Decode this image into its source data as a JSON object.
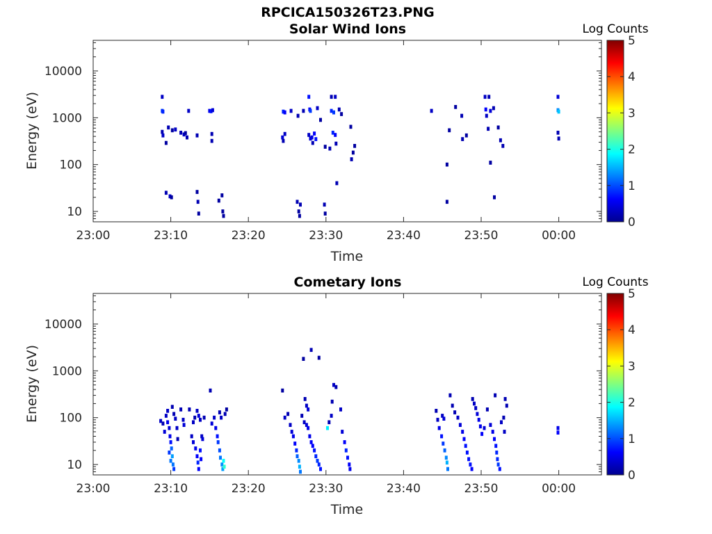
{
  "figure": {
    "title": "RPCICA150326T23.PNG"
  },
  "colors": {
    "colormap": [
      "#00008f",
      "#0000ff",
      "#0080ff",
      "#00ffff",
      "#80ff80",
      "#ffff00",
      "#ff8000",
      "#ff0000",
      "#800000"
    ],
    "axis": "#262626"
  },
  "chart_data": [
    {
      "type": "heatmap",
      "title": "Solar Wind Ions",
      "xlabel": "Time",
      "ylabel": "Energy (eV)",
      "colorbar_label": "Log Counts",
      "x_axis": {
        "type": "time",
        "range_minutes": [
          0,
          65.5
        ],
        "ticks_minutes": [
          0,
          10,
          20,
          30,
          40,
          50,
          60
        ],
        "tick_labels": [
          "23:00",
          "23:10",
          "23:20",
          "23:30",
          "23:40",
          "23:50",
          "00:00"
        ]
      },
      "y_axis": {
        "scale": "log",
        "range_eV": [
          6,
          45000
        ],
        "ticks": [
          10,
          100,
          1000,
          10000
        ],
        "tick_labels": [
          "10",
          "100",
          "1000",
          "10000"
        ]
      },
      "colorbar": {
        "range": [
          0,
          5
        ],
        "ticks": [
          0,
          1,
          2,
          3,
          4,
          5
        ],
        "tick_labels": [
          "0",
          "1",
          "2",
          "3",
          "4",
          "5"
        ]
      },
      "cells": [
        [
          8.9,
          2800,
          0.3
        ],
        [
          8.9,
          1400,
          0.9
        ],
        [
          9.0,
          1350,
          0.8
        ],
        [
          8.9,
          500,
          0.2
        ],
        [
          9.0,
          420,
          0.3
        ],
        [
          9.4,
          290,
          0.1
        ],
        [
          9.7,
          620,
          0.2
        ],
        [
          10.2,
          540,
          0.1
        ],
        [
          10.6,
          560,
          0.3
        ],
        [
          11.3,
          480,
          0.2
        ],
        [
          11.7,
          440,
          0.3
        ],
        [
          11.9,
          470,
          0.1
        ],
        [
          12.1,
          380,
          0.2
        ],
        [
          12.3,
          1400,
          0.3
        ],
        [
          13.4,
          420,
          0.2
        ],
        [
          15.0,
          1400,
          0.5
        ],
        [
          15.2,
          1380,
          0.7
        ],
        [
          15.4,
          1450,
          0.4
        ],
        [
          15.3,
          450,
          0.2
        ],
        [
          15.3,
          320,
          0.2
        ],
        [
          24.5,
          1350,
          0.8
        ],
        [
          24.7,
          1300,
          0.6
        ],
        [
          24.4,
          380,
          0.4
        ],
        [
          24.7,
          450,
          0.3
        ],
        [
          24.5,
          320,
          0.2
        ],
        [
          25.5,
          1400,
          0.3
        ],
        [
          26.4,
          1100,
          0.2
        ],
        [
          27.1,
          1400,
          0.2
        ],
        [
          27.8,
          2800,
          0.7
        ],
        [
          27.9,
          1500,
          0.6
        ],
        [
          28.0,
          1400,
          0.9
        ],
        [
          28.2,
          380,
          0.5
        ],
        [
          28.5,
          460,
          0.6
        ],
        [
          28.7,
          350,
          0.7
        ],
        [
          27.8,
          430,
          0.3
        ],
        [
          28.0,
          360,
          0.4
        ],
        [
          28.3,
          290,
          0.2
        ],
        [
          28.9,
          1600,
          0.3
        ],
        [
          29.3,
          900,
          0.1
        ],
        [
          29.9,
          240,
          0.1
        ],
        [
          30.5,
          220,
          0.2
        ],
        [
          30.7,
          1400,
          0.8
        ],
        [
          31.0,
          1300,
          0.9
        ],
        [
          30.9,
          480,
          0.8
        ],
        [
          31.2,
          430,
          0.6
        ],
        [
          30.7,
          2800,
          0.2
        ],
        [
          31.2,
          2800,
          0.3
        ],
        [
          31.7,
          1500,
          0.2
        ],
        [
          31.3,
          280,
          0.2
        ],
        [
          32.0,
          1200,
          0.1
        ],
        [
          33.2,
          640,
          0.1
        ],
        [
          33.5,
          180,
          0.1
        ],
        [
          33.3,
          130,
          0.2
        ],
        [
          33.7,
          250,
          0.1
        ],
        [
          31.4,
          40,
          0.2
        ],
        [
          43.6,
          1400,
          0.3
        ],
        [
          46.7,
          1700,
          0.1
        ],
        [
          47.5,
          1100,
          0.2
        ],
        [
          45.9,
          540,
          0.1
        ],
        [
          47.6,
          350,
          0.2
        ],
        [
          48.1,
          420,
          0.1
        ],
        [
          45.6,
          100,
          0.1
        ],
        [
          50.5,
          2800,
          0.3
        ],
        [
          51.0,
          2800,
          0.2
        ],
        [
          50.6,
          1500,
          0.6
        ],
        [
          50.7,
          1100,
          0.3
        ],
        [
          51.2,
          1400,
          0.4
        ],
        [
          51.6,
          1600,
          0.2
        ],
        [
          52.2,
          620,
          0.1
        ],
        [
          50.9,
          580,
          0.2
        ],
        [
          52.5,
          330,
          0.2
        ],
        [
          52.8,
          250,
          0.2
        ],
        [
          51.2,
          110,
          0.1
        ],
        [
          59.9,
          2800,
          0.4
        ],
        [
          59.9,
          1450,
          1.3
        ],
        [
          60.0,
          1350,
          1.6
        ],
        [
          59.9,
          480,
          0.2
        ],
        [
          60.0,
          360,
          0.2
        ],
        [
          9.4,
          25,
          0.2
        ],
        [
          9.9,
          21,
          0.3
        ],
        [
          10.1,
          20,
          0.1
        ],
        [
          13.4,
          26,
          0.1
        ],
        [
          13.5,
          16,
          0.2
        ],
        [
          13.6,
          9,
          0.1
        ],
        [
          16.2,
          17,
          0.1
        ],
        [
          16.6,
          22,
          0.1
        ],
        [
          16.7,
          10,
          0.1
        ],
        [
          16.8,
          8,
          0.1
        ],
        [
          26.3,
          16,
          0.2
        ],
        [
          26.5,
          10,
          0.1
        ],
        [
          26.7,
          14,
          0.2
        ],
        [
          26.6,
          8,
          0.1
        ],
        [
          29.8,
          14,
          0.2
        ],
        [
          29.9,
          9,
          0.1
        ],
        [
          45.6,
          16,
          0.1
        ],
        [
          51.7,
          20,
          0.1
        ]
      ]
    },
    {
      "type": "heatmap",
      "title": "Cometary Ions",
      "xlabel": "Time",
      "ylabel": "Energy (eV)",
      "colorbar_label": "Log Counts",
      "x_axis": {
        "type": "time",
        "range_minutes": [
          0,
          65.5
        ],
        "ticks_minutes": [
          0,
          10,
          20,
          30,
          40,
          50,
          60
        ],
        "tick_labels": [
          "23:00",
          "23:10",
          "23:20",
          "23:30",
          "23:40",
          "23:50",
          "00:00"
        ]
      },
      "y_axis": {
        "scale": "log",
        "range_eV": [
          6,
          45000
        ],
        "ticks": [
          10,
          100,
          1000,
          10000
        ],
        "tick_labels": [
          "10",
          "100",
          "1000",
          "10000"
        ]
      },
      "colorbar": {
        "range": [
          0,
          5
        ],
        "ticks": [
          0,
          1,
          2,
          3,
          4,
          5
        ],
        "tick_labels": [
          "0",
          "1",
          "2",
          "3",
          "4",
          "5"
        ]
      },
      "cells": [
        [
          8.7,
          85,
          0.3
        ],
        [
          9.0,
          75,
          0.2
        ],
        [
          9.2,
          50,
          0.4
        ],
        [
          9.4,
          110,
          0.3
        ],
        [
          9.6,
          80,
          0.5
        ],
        [
          9.8,
          60,
          0.4
        ],
        [
          9.9,
          40,
          0.5
        ],
        [
          10.0,
          30,
          0.7
        ],
        [
          10.1,
          22,
          1.1
        ],
        [
          10.2,
          15,
          1.4
        ],
        [
          10.3,
          10,
          1.2
        ],
        [
          10.4,
          8,
          0.9
        ],
        [
          9.8,
          18,
          0.9
        ],
        [
          10.0,
          12,
          1.2
        ],
        [
          9.6,
          140,
          0.3
        ],
        [
          10.2,
          170,
          0.2
        ],
        [
          10.4,
          120,
          0.2
        ],
        [
          10.6,
          95,
          0.3
        ],
        [
          10.8,
          60,
          0.3
        ],
        [
          10.9,
          35,
          0.2
        ],
        [
          11.3,
          150,
          0.2
        ],
        [
          11.7,
          70,
          0.4
        ],
        [
          11.6,
          90,
          0.3
        ],
        [
          12.4,
          150,
          0.2
        ],
        [
          12.7,
          40,
          0.3
        ],
        [
          12.9,
          30,
          0.4
        ],
        [
          13.2,
          22,
          0.5
        ],
        [
          13.4,
          15,
          0.6
        ],
        [
          13.5,
          11,
          0.8
        ],
        [
          13.6,
          8,
          0.6
        ],
        [
          13.8,
          20,
          0.7
        ],
        [
          13.9,
          13,
          0.6
        ],
        [
          12.9,
          80,
          0.3
        ],
        [
          13.1,
          100,
          0.2
        ],
        [
          13.4,
          140,
          0.3
        ],
        [
          13.6,
          110,
          0.4
        ],
        [
          13.8,
          90,
          0.3
        ],
        [
          14.0,
          40,
          0.3
        ],
        [
          14.1,
          35,
          0.4
        ],
        [
          14.3,
          100,
          0.2
        ],
        [
          15.1,
          380,
          0.2
        ],
        [
          15.3,
          75,
          0.4
        ],
        [
          15.6,
          100,
          0.3
        ],
        [
          15.8,
          60,
          0.5
        ],
        [
          16.0,
          40,
          0.7
        ],
        [
          16.1,
          30,
          0.9
        ],
        [
          16.3,
          20,
          1.0
        ],
        [
          16.4,
          14,
          1.2
        ],
        [
          16.6,
          10,
          1.3
        ],
        [
          16.7,
          8,
          1.4
        ],
        [
          16.8,
          12,
          1.9
        ],
        [
          16.9,
          9,
          2.1
        ],
        [
          16.3,
          130,
          0.2
        ],
        [
          16.5,
          100,
          0.3
        ],
        [
          17.0,
          120,
          0.2
        ],
        [
          17.2,
          150,
          0.1
        ],
        [
          24.4,
          380,
          0.1
        ],
        [
          24.7,
          100,
          0.3
        ],
        [
          25.1,
          120,
          0.2
        ],
        [
          25.4,
          70,
          0.3
        ],
        [
          25.6,
          50,
          0.4
        ],
        [
          25.8,
          40,
          0.5
        ],
        [
          26.0,
          28,
          0.6
        ],
        [
          26.2,
          20,
          0.8
        ],
        [
          26.3,
          15,
          1.1
        ],
        [
          26.5,
          12,
          1.3
        ],
        [
          26.6,
          9,
          1.5
        ],
        [
          26.7,
          7,
          1.2
        ],
        [
          26.9,
          110,
          0.2
        ],
        [
          27.2,
          80,
          0.3
        ],
        [
          27.5,
          70,
          0.4
        ],
        [
          27.7,
          60,
          0.5
        ],
        [
          27.9,
          40,
          0.5
        ],
        [
          28.1,
          30,
          0.6
        ],
        [
          28.3,
          25,
          0.6
        ],
        [
          28.5,
          20,
          0.7
        ],
        [
          28.7,
          15,
          0.8
        ],
        [
          28.9,
          12,
          0.9
        ],
        [
          29.1,
          10,
          0.8
        ],
        [
          29.3,
          8,
          0.7
        ],
        [
          28.1,
          2800,
          0.2
        ],
        [
          29.1,
          1900,
          0.1
        ],
        [
          27.1,
          1800,
          0.1
        ],
        [
          27.3,
          250,
          0.2
        ],
        [
          27.5,
          180,
          0.3
        ],
        [
          27.7,
          150,
          0.4
        ],
        [
          30.4,
          80,
          0.2
        ],
        [
          30.2,
          60,
          1.8
        ],
        [
          30.7,
          110,
          0.3
        ],
        [
          31.0,
          500,
          0.3
        ],
        [
          31.3,
          450,
          0.2
        ],
        [
          30.8,
          220,
          0.2
        ],
        [
          31.9,
          150,
          0.3
        ],
        [
          32.1,
          50,
          0.4
        ],
        [
          32.4,
          30,
          0.6
        ],
        [
          32.6,
          20,
          0.8
        ],
        [
          32.8,
          14,
          0.7
        ],
        [
          33.0,
          10,
          0.6
        ],
        [
          33.1,
          8,
          0.5
        ],
        [
          44.2,
          140,
          0.2
        ],
        [
          44.4,
          90,
          0.3
        ],
        [
          44.6,
          60,
          0.5
        ],
        [
          44.9,
          40,
          0.7
        ],
        [
          45.1,
          28,
          0.9
        ],
        [
          45.3,
          20,
          1.1
        ],
        [
          45.5,
          14,
          1.3
        ],
        [
          45.6,
          11,
          1.5
        ],
        [
          45.7,
          8,
          1.2
        ],
        [
          45.0,
          110,
          0.3
        ],
        [
          45.2,
          95,
          0.4
        ],
        [
          46.0,
          300,
          0.2
        ],
        [
          46.3,
          180,
          0.2
        ],
        [
          46.6,
          130,
          0.2
        ],
        [
          47.0,
          100,
          0.3
        ],
        [
          47.3,
          70,
          0.4
        ],
        [
          47.6,
          50,
          0.5
        ],
        [
          47.8,
          35,
          0.6
        ],
        [
          48.0,
          25,
          0.7
        ],
        [
          48.2,
          18,
          0.7
        ],
        [
          48.4,
          13,
          0.7
        ],
        [
          48.6,
          10,
          0.7
        ],
        [
          48.8,
          8,
          0.6
        ],
        [
          48.9,
          250,
          0.2
        ],
        [
          49.1,
          200,
          0.3
        ],
        [
          49.3,
          160,
          0.3
        ],
        [
          49.5,
          120,
          0.4
        ],
        [
          49.7,
          90,
          0.5
        ],
        [
          49.9,
          65,
          0.5
        ],
        [
          50.1,
          45,
          0.6
        ],
        [
          50.4,
          60,
          0.4
        ],
        [
          50.8,
          150,
          0.2
        ],
        [
          51.2,
          70,
          0.4
        ],
        [
          51.5,
          50,
          0.5
        ],
        [
          51.7,
          35,
          0.6
        ],
        [
          51.9,
          25,
          0.7
        ],
        [
          52.0,
          18,
          0.8
        ],
        [
          52.1,
          13,
          0.8
        ],
        [
          52.2,
          10,
          0.9
        ],
        [
          52.4,
          8,
          0.7
        ],
        [
          51.8,
          300,
          0.2
        ],
        [
          52.6,
          80,
          0.3
        ],
        [
          52.9,
          100,
          0.2
        ],
        [
          53.1,
          250,
          0.2
        ],
        [
          53.3,
          180,
          0.2
        ],
        [
          53.0,
          50,
          0.3
        ],
        [
          59.9,
          60,
          0.5
        ],
        [
          59.9,
          48,
          0.6
        ]
      ]
    }
  ]
}
